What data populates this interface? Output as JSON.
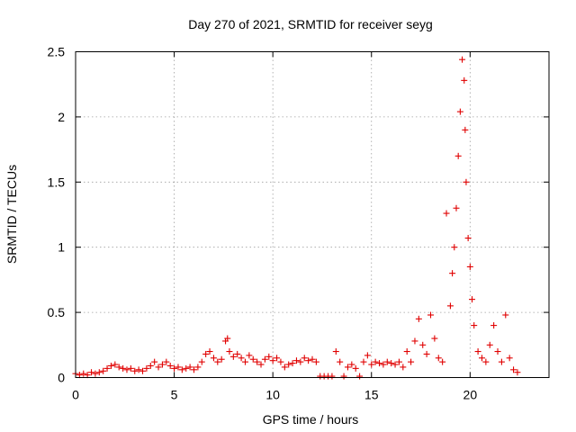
{
  "chart_data": {
    "type": "scatter",
    "title": "Day 270 of 2021, SRMTID for receiver seyg",
    "xlabel": "GPS time / hours",
    "ylabel": "SRMTID / TECUs",
    "xlim": [
      0,
      24
    ],
    "ylim": [
      0,
      2.5
    ],
    "xticks": [
      0,
      5,
      10,
      15,
      20
    ],
    "yticks": [
      0,
      0.5,
      1,
      1.5,
      2,
      2.5
    ],
    "xtick_labels": [
      "0",
      "5",
      "10",
      "15",
      "20"
    ],
    "ytick_labels": [
      "0",
      "0.5",
      "1",
      "1.5",
      "2",
      "2.5"
    ],
    "grid": true,
    "marker": "+",
    "series": [
      {
        "name": "SRMTID",
        "color": "#e00000",
        "points": [
          [
            0.0,
            0.03
          ],
          [
            0.2,
            0.02
          ],
          [
            0.4,
            0.03
          ],
          [
            0.6,
            0.02
          ],
          [
            0.8,
            0.04
          ],
          [
            1.0,
            0.03
          ],
          [
            1.2,
            0.04
          ],
          [
            1.4,
            0.05
          ],
          [
            1.6,
            0.07
          ],
          [
            1.8,
            0.09
          ],
          [
            2.0,
            0.1
          ],
          [
            2.2,
            0.08
          ],
          [
            2.4,
            0.07
          ],
          [
            2.6,
            0.06
          ],
          [
            2.8,
            0.07
          ],
          [
            3.0,
            0.05
          ],
          [
            3.2,
            0.06
          ],
          [
            3.4,
            0.05
          ],
          [
            3.6,
            0.07
          ],
          [
            3.8,
            0.09
          ],
          [
            4.0,
            0.12
          ],
          [
            4.2,
            0.08
          ],
          [
            4.4,
            0.1
          ],
          [
            4.6,
            0.12
          ],
          [
            4.8,
            0.09
          ],
          [
            5.0,
            0.07
          ],
          [
            5.2,
            0.08
          ],
          [
            5.4,
            0.06
          ],
          [
            5.6,
            0.07
          ],
          [
            5.8,
            0.08
          ],
          [
            6.0,
            0.06
          ],
          [
            6.2,
            0.08
          ],
          [
            6.4,
            0.12
          ],
          [
            6.6,
            0.18
          ],
          [
            6.8,
            0.2
          ],
          [
            7.0,
            0.15
          ],
          [
            7.2,
            0.12
          ],
          [
            7.4,
            0.14
          ],
          [
            7.6,
            0.28
          ],
          [
            7.7,
            0.3
          ],
          [
            7.8,
            0.2
          ],
          [
            8.0,
            0.16
          ],
          [
            8.2,
            0.18
          ],
          [
            8.4,
            0.15
          ],
          [
            8.6,
            0.12
          ],
          [
            8.8,
            0.17
          ],
          [
            9.0,
            0.14
          ],
          [
            9.2,
            0.12
          ],
          [
            9.4,
            0.1
          ],
          [
            9.6,
            0.14
          ],
          [
            9.8,
            0.16
          ],
          [
            10.0,
            0.13
          ],
          [
            10.2,
            0.15
          ],
          [
            10.4,
            0.12
          ],
          [
            10.6,
            0.08
          ],
          [
            10.8,
            0.1
          ],
          [
            11.0,
            0.11
          ],
          [
            11.2,
            0.13
          ],
          [
            11.4,
            0.12
          ],
          [
            11.6,
            0.15
          ],
          [
            11.8,
            0.13
          ],
          [
            12.0,
            0.14
          ],
          [
            12.2,
            0.12
          ],
          [
            12.4,
            0.01
          ],
          [
            12.6,
            0.01
          ],
          [
            12.8,
            0.01
          ],
          [
            13.0,
            0.01
          ],
          [
            13.2,
            0.2
          ],
          [
            13.4,
            0.12
          ],
          [
            13.6,
            0.01
          ],
          [
            13.8,
            0.08
          ],
          [
            14.0,
            0.1
          ],
          [
            14.2,
            0.07
          ],
          [
            14.4,
            0.01
          ],
          [
            14.6,
            0.12
          ],
          [
            14.8,
            0.17
          ],
          [
            15.0,
            0.1
          ],
          [
            15.2,
            0.12
          ],
          [
            15.4,
            0.11
          ],
          [
            15.6,
            0.1
          ],
          [
            15.8,
            0.12
          ],
          [
            16.0,
            0.11
          ],
          [
            16.2,
            0.1
          ],
          [
            16.4,
            0.12
          ],
          [
            16.6,
            0.08
          ],
          [
            16.8,
            0.2
          ],
          [
            17.0,
            0.12
          ],
          [
            17.2,
            0.28
          ],
          [
            17.4,
            0.45
          ],
          [
            17.6,
            0.25
          ],
          [
            17.8,
            0.18
          ],
          [
            18.0,
            0.48
          ],
          [
            18.2,
            0.3
          ],
          [
            18.4,
            0.15
          ],
          [
            18.6,
            0.12
          ],
          [
            18.8,
            1.26
          ],
          [
            19.0,
            0.55
          ],
          [
            19.1,
            0.8
          ],
          [
            19.2,
            1.0
          ],
          [
            19.3,
            1.3
          ],
          [
            19.4,
            1.7
          ],
          [
            19.5,
            2.04
          ],
          [
            19.6,
            2.44
          ],
          [
            19.7,
            2.28
          ],
          [
            19.75,
            1.9
          ],
          [
            19.8,
            1.5
          ],
          [
            19.9,
            1.07
          ],
          [
            20.0,
            0.85
          ],
          [
            20.1,
            0.6
          ],
          [
            20.2,
            0.4
          ],
          [
            20.4,
            0.2
          ],
          [
            20.6,
            0.15
          ],
          [
            20.8,
            0.12
          ],
          [
            21.0,
            0.25
          ],
          [
            21.2,
            0.4
          ],
          [
            21.4,
            0.2
          ],
          [
            21.6,
            0.12
          ],
          [
            21.8,
            0.48
          ],
          [
            22.0,
            0.15
          ],
          [
            22.2,
            0.06
          ],
          [
            22.4,
            0.04
          ]
        ]
      }
    ]
  }
}
